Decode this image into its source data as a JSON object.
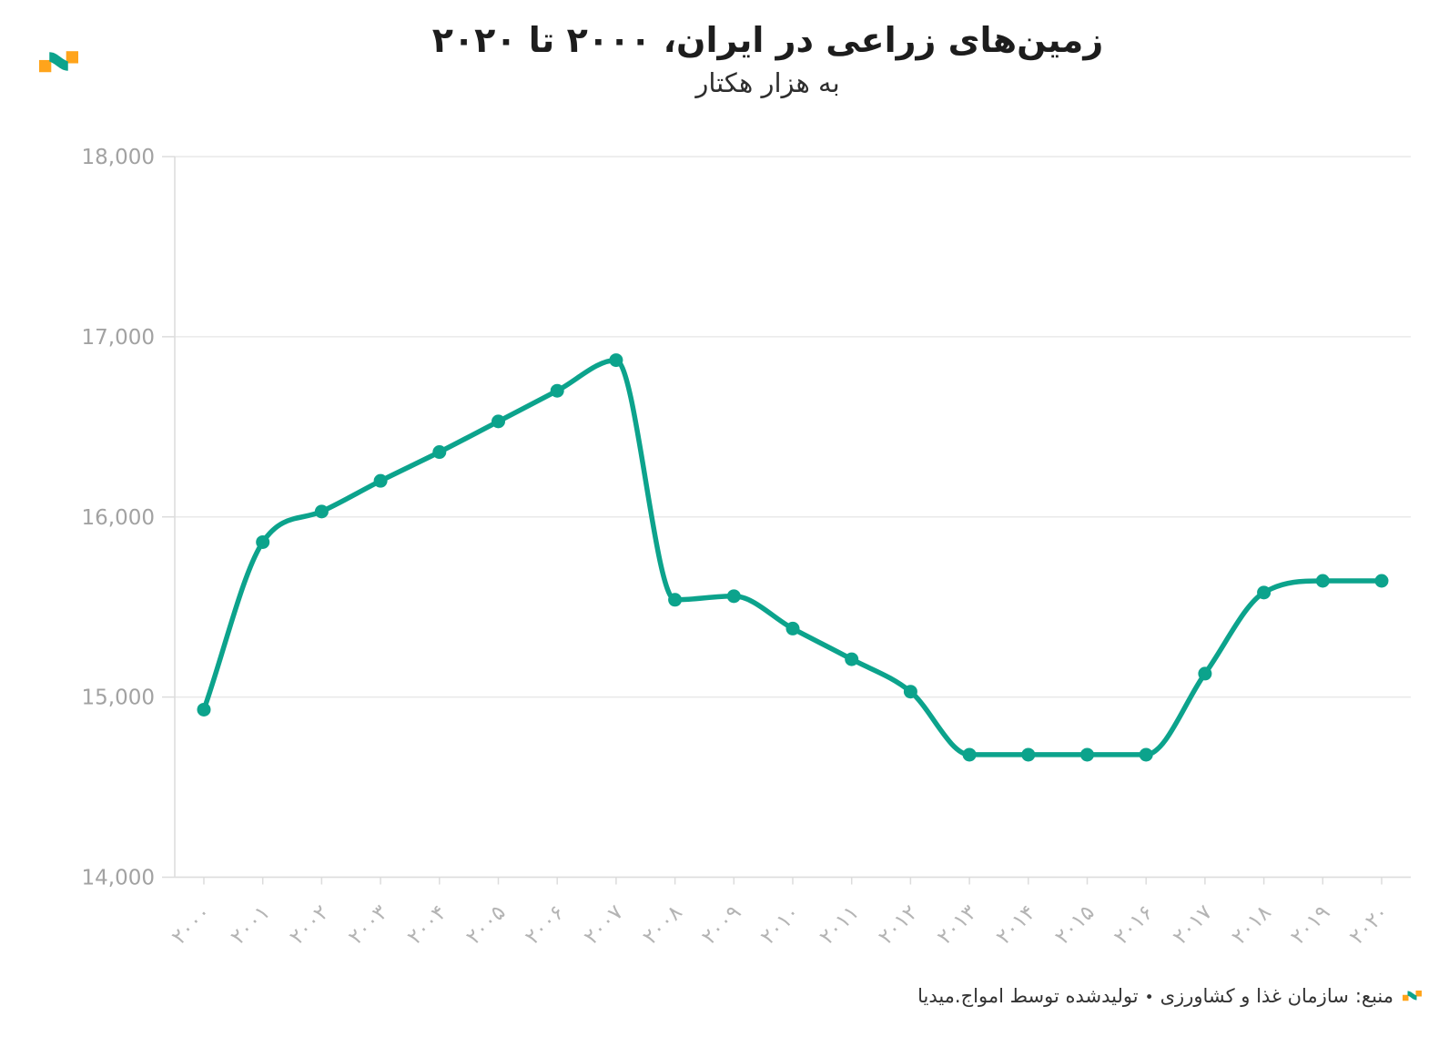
{
  "branding": {
    "logo": "amwaj-media-wave-logo",
    "logo_orange": "#FFA41B",
    "logo_teal": "#0CA38C"
  },
  "chart_data": {
    "type": "line",
    "title": "زمین‌های زراعی در ایران، ۲۰۰۰ تا ۲۰۲۰",
    "subtitle": "به هزار هکتار",
    "ylabel": "هزار هکتار",
    "x": [
      2000,
      2001,
      2002,
      2003,
      2004,
      2005,
      2006,
      2007,
      2008,
      2009,
      2010,
      2011,
      2012,
      2013,
      2014,
      2015,
      2016,
      2017,
      2018,
      2019,
      2020
    ],
    "x_labels": [
      "۲۰۰۰",
      "۲۰۰۱",
      "۲۰۰۲",
      "۲۰۰۳",
      "۲۰۰۴",
      "۲۰۰۵",
      "۲۰۰۶",
      "۲۰۰۷",
      "۲۰۰۸",
      "۲۰۰۹",
      "۲۰۱۰",
      "۲۰۱۱",
      "۲۰۱۲",
      "۲۰۱۳",
      "۲۰۱۴",
      "۲۰۱۵",
      "۲۰۱۶",
      "۲۰۱۷",
      "۲۰۱۸",
      "۲۰۱۹",
      "۲۰۲۰"
    ],
    "values": [
      14930,
      15860,
      16030,
      16200,
      16360,
      16530,
      16700,
      16870,
      15540,
      15560,
      15380,
      15210,
      15030,
      14680,
      14680,
      14680,
      14680,
      15130,
      15580,
      15645,
      15645
    ],
    "ylim": [
      14000,
      18000
    ],
    "yticks": [
      14000,
      15000,
      16000,
      17000,
      18000
    ],
    "ytick_labels": [
      "14,000",
      "15,000",
      "16,000",
      "17,000",
      "18,000"
    ],
    "grid": "horizontal",
    "legend": "none",
    "line_color": "#0CA38C",
    "tick_label_color_y": "#a2a2a2",
    "tick_label_color_x": "#b4b4b4",
    "gridline_color": "#e9e9e9",
    "axis_line_color": "#dcdcdc"
  },
  "footer": {
    "source_label": "منبع:",
    "source": "سازمان غذا و کشاورزی",
    "separator": "•",
    "produced_by": "تولیدشده توسط امواج.میدیا"
  }
}
